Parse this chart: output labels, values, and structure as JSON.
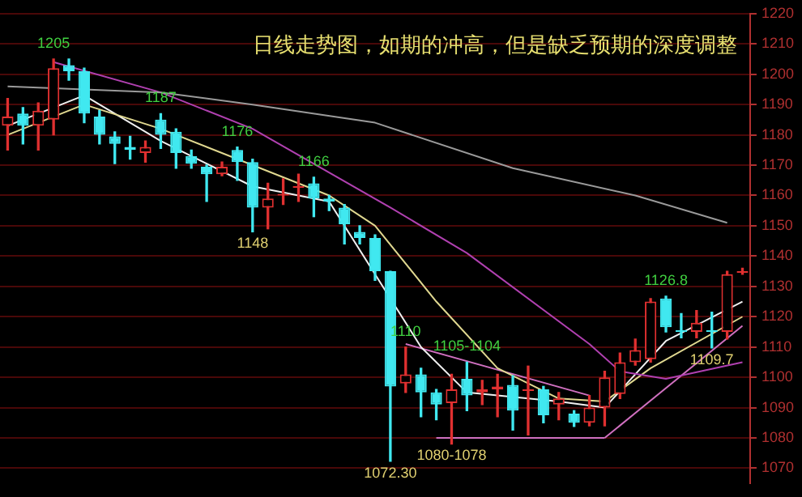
{
  "chart_data": {
    "type": "candlestick",
    "title": "日线走势图，如期的冲高，但是缺乏预期的深度调整",
    "categories": [
      null,
      null,
      null,
      null,
      null,
      null,
      null,
      null,
      null,
      null,
      null,
      null,
      null,
      null,
      null,
      null,
      null,
      null,
      null,
      null,
      null,
      null,
      null,
      null,
      null,
      null,
      null,
      null,
      null,
      null,
      null,
      null,
      null,
      null,
      null,
      null,
      null,
      null,
      null,
      null,
      null,
      null,
      null,
      null,
      null,
      null,
      null,
      null,
      null
    ],
    "ohlc": [
      [
        1183,
        1192,
        1175,
        1186
      ],
      [
        1187,
        1189,
        1177,
        1183
      ],
      [
        1183,
        1190.5,
        1175,
        1188
      ],
      [
        1185,
        1205,
        1180,
        1202
      ],
      [
        1203,
        1205,
        1198,
        1201
      ],
      [
        1201,
        1202,
        1184,
        1187
      ],
      [
        1186,
        1188,
        1177,
        1180
      ],
      [
        1179.5,
        1181,
        1170.5,
        1177
      ],
      [
        1176,
        1179.5,
        1172,
        1175
      ],
      [
        1174,
        1178,
        1171,
        1176
      ],
      [
        1185,
        1187,
        1175.5,
        1180
      ],
      [
        1181,
        1182,
        1169,
        1174
      ],
      [
        1173,
        1175,
        1169,
        1170.5
      ],
      [
        1169.5,
        1170,
        1158,
        1167
      ],
      [
        1167,
        1171,
        1166.5,
        1169.5
      ],
      [
        1175,
        1176,
        1165,
        1171
      ],
      [
        1171,
        1172,
        1148,
        1156
      ],
      [
        1156,
        1164,
        1149,
        1159
      ],
      [
        1160,
        1165.5,
        1157,
        1160.5
      ],
      [
        1162.5,
        1167,
        1158,
        1163
      ],
      [
        1164,
        1166,
        1153,
        1159
      ],
      [
        1159,
        1160,
        1155,
        1158
      ],
      [
        1156,
        1157,
        1144,
        1150.5
      ],
      [
        1148,
        1150,
        1144,
        1146
      ],
      [
        1146,
        1147,
        1132,
        1135
      ],
      [
        1135,
        1135,
        1072.3,
        1097
      ],
      [
        1098,
        1110,
        1095,
        1101
      ],
      [
        1101,
        1103,
        1087,
        1095
      ],
      [
        1095,
        1096,
        1086,
        1091
      ],
      [
        1091.5,
        1101,
        1078,
        1096
      ],
      [
        1099.5,
        1105,
        1089,
        1094
      ],
      [
        1095,
        1099,
        1091,
        1096
      ],
      [
        1096,
        1101,
        1087,
        1097
      ],
      [
        1097.5,
        1100.5,
        1082.6,
        1089
      ],
      [
        1095.5,
        1103.7,
        1081,
        1096
      ],
      [
        1096,
        1097,
        1085,
        1087.5
      ],
      [
        1091,
        1095,
        1086,
        1093
      ],
      [
        1088,
        1089,
        1083.8,
        1085
      ],
      [
        1085,
        1094,
        1084,
        1090
      ],
      [
        1090,
        1102,
        1084,
        1100
      ],
      [
        1094.5,
        1108,
        1093,
        1105
      ],
      [
        1105,
        1112.6,
        1104,
        1109
      ],
      [
        1106,
        1126,
        1105,
        1125
      ],
      [
        1126,
        1126.8,
        1115,
        1116.5
      ],
      [
        1115.5,
        1121,
        1113,
        1115
      ],
      [
        1115,
        1122,
        1113,
        1118
      ],
      [
        1115.5,
        1121.5,
        1109.7,
        1115
      ],
      [
        1115,
        1135,
        1112.6,
        1134
      ],
      [
        1134.5,
        1136,
        1134,
        1135
      ]
    ],
    "colors": [
      "#e03030",
      "#40e8f0",
      "#e03030",
      "#e03030",
      "#40e8f0",
      "#40e8f0",
      "#40e8f0",
      "#40e8f0",
      "#40e8f0",
      "#e03030",
      "#40e8f0",
      "#40e8f0",
      "#40e8f0",
      "#40e8f0",
      "#e03030",
      "#40e8f0",
      "#40e8f0",
      "#e03030",
      "#e03030",
      "#e03030",
      "#40e8f0",
      "#40e8f0",
      "#40e8f0",
      "#40e8f0",
      "#40e8f0",
      "#40e8f0",
      "#e03030",
      "#40e8f0",
      "#40e8f0",
      "#e03030",
      "#40e8f0",
      "#e03030",
      "#e03030",
      "#40e8f0",
      "#e03030",
      "#40e8f0",
      "#e03030",
      "#40e8f0",
      "#e03030",
      "#e03030",
      "#e03030",
      "#e03030",
      "#e03030",
      "#40e8f0",
      "#40e8f0",
      "#e03030",
      "#40e8f0",
      "#e03030",
      "#e03030"
    ],
    "series": [
      {
        "type": "line",
        "color": "#9a9a9a",
        "values": [
          1196,
          null,
          null,
          null,
          null,
          null,
          null,
          null,
          null,
          null,
          1194,
          null,
          null,
          null,
          null,
          null,
          1190,
          null,
          null,
          null,
          null,
          null,
          null,
          null,
          1184,
          null,
          null,
          null,
          null,
          null,
          null,
          null,
          null,
          1169,
          null,
          null,
          null,
          null,
          null,
          null,
          null,
          1160,
          null,
          null,
          null,
          null,
          null,
          1151,
          null
        ]
      },
      {
        "type": "line",
        "color": "#b040b0",
        "values": [
          null,
          null,
          null,
          1204,
          null,
          null,
          null,
          null,
          null,
          null,
          1194,
          null,
          null,
          null,
          null,
          null,
          1182,
          null,
          null,
          null,
          null,
          null,
          null,
          null,
          null,
          1156,
          null,
          null,
          null,
          null,
          1141,
          null,
          null,
          null,
          null,
          null,
          null,
          null,
          1111,
          null,
          1102,
          null,
          null,
          1099.5,
          null,
          null,
          null,
          null,
          1105
        ]
      },
      {
        "type": "line",
        "color": "#e0d890",
        "values": [
          1180,
          null,
          null,
          null,
          null,
          1190,
          null,
          null,
          null,
          null,
          1182,
          null,
          null,
          null,
          null,
          null,
          1170,
          null,
          null,
          null,
          null,
          1160,
          null,
          null,
          1150,
          null,
          null,
          null,
          1125,
          null,
          null,
          null,
          1103,
          null,
          null,
          null,
          1093,
          null,
          null,
          1092,
          null,
          null,
          1103,
          null,
          null,
          null,
          null,
          null,
          1120
        ]
      },
      {
        "type": "line",
        "color": "#f0f0f0",
        "values": [
          1183,
          null,
          null,
          null,
          null,
          1193,
          null,
          null,
          null,
          null,
          1178,
          null,
          null,
          null,
          null,
          null,
          1163,
          null,
          null,
          null,
          null,
          1158,
          null,
          null,
          null,
          null,
          null,
          1110,
          null,
          null,
          1095,
          null,
          null,
          null,
          null,
          null,
          1092,
          null,
          null,
          1090,
          null,
          null,
          null,
          1112,
          null,
          null,
          null,
          null,
          1125
        ]
      },
      {
        "type": "line",
        "color": "#d070c0",
        "values": [
          null,
          null,
          null,
          null,
          null,
          null,
          null,
          null,
          null,
          null,
          null,
          null,
          null,
          null,
          null,
          null,
          null,
          null,
          null,
          null,
          null,
          null,
          null,
          null,
          null,
          null,
          1111,
          null,
          null,
          null,
          null,
          null,
          null,
          null,
          null,
          null,
          null,
          null,
          1094,
          null,
          null,
          null,
          null,
          null,
          null,
          null,
          null,
          null,
          null
        ]
      },
      {
        "type": "line",
        "color": "#d070c0",
        "values": [
          null,
          null,
          null,
          null,
          null,
          null,
          null,
          null,
          null,
          null,
          null,
          null,
          null,
          null,
          null,
          null,
          null,
          null,
          null,
          null,
          null,
          null,
          null,
          null,
          null,
          null,
          null,
          null,
          1080,
          null,
          null,
          null,
          null,
          null,
          null,
          null,
          null,
          null,
          null,
          1080,
          null,
          null,
          null,
          null,
          null,
          null,
          null,
          null,
          null
        ]
      },
      {
        "type": "line",
        "color": "#d070c0",
        "values": [
          null,
          null,
          null,
          null,
          null,
          null,
          null,
          null,
          null,
          null,
          null,
          null,
          null,
          null,
          null,
          null,
          null,
          null,
          null,
          null,
          null,
          null,
          null,
          null,
          null,
          null,
          null,
          null,
          null,
          null,
          null,
          null,
          null,
          null,
          null,
          null,
          null,
          null,
          null,
          1080,
          null,
          null,
          null,
          null,
          null,
          null,
          null,
          null,
          1117
        ]
      }
    ],
    "annotations": [
      {
        "text": "1205",
        "y": 1205
      },
      {
        "text": "1187",
        "y": 1187
      },
      {
        "text": "1176",
        "y": 1176
      },
      {
        "text": "1166",
        "y": 1166
      },
      {
        "text": "1148",
        "y": 1148
      },
      {
        "text": "1072.30",
        "y": 1072.3
      },
      {
        "text": "1110",
        "y": 1110
      },
      {
        "text": "1105-1104",
        "y": 1105
      },
      {
        "text": "1080-1078",
        "y": 1078
      },
      {
        "text": "1126.8",
        "y": 1126.8
      },
      {
        "text": "1109.7",
        "y": 1109.7
      }
    ],
    "ylim": [
      1065,
      1220
    ],
    "yticks": [
      1070,
      1080,
      1090,
      1100,
      1110,
      1120,
      1130,
      1140,
      1150,
      1160,
      1170,
      1180,
      1190,
      1200,
      1210,
      1220
    ],
    "grid": "y",
    "legend": false,
    "tick_labels": "y",
    "marker": "none"
  }
}
